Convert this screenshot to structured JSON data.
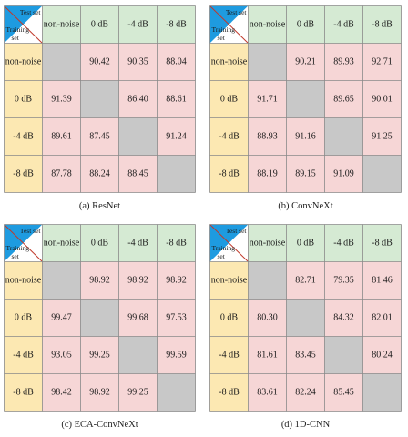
{
  "colors": {
    "header_green": "#d5ead3",
    "row_header_yellow": "#fce8b2",
    "cell_pink": "#f6d6d6",
    "diagonal_gray": "#c8c8c8",
    "corner_blue": "#1e9be0",
    "grid_line": "#8a8a8a"
  },
  "corner_labels": {
    "test": "Test set",
    "training": "Training",
    "training2": "set"
  },
  "chart_data": [
    {
      "type": "table",
      "caption": "(a) ResNet",
      "column_headers": [
        "non-noise",
        "0 dB",
        "-4 dB",
        "-8 dB"
      ],
      "row_headers": [
        "non-noise",
        "0 dB",
        "-4 dB",
        "-8 dB"
      ],
      "values": [
        [
          "",
          "90.42",
          "90.35",
          "88.04"
        ],
        [
          "91.39",
          "",
          "86.40",
          "88.61"
        ],
        [
          "89.61",
          "87.45",
          "",
          "91.24"
        ],
        [
          "87.78",
          "88.24",
          "88.45",
          ""
        ]
      ]
    },
    {
      "type": "table",
      "caption": "(b) ConvNeXt",
      "column_headers": [
        "non-noise",
        "0 dB",
        "-4 dB",
        "-8 dB"
      ],
      "row_headers": [
        "non-noise",
        "0 dB",
        "-4 dB",
        "-8 dB"
      ],
      "values": [
        [
          "",
          "90.21",
          "89.93",
          "92.71"
        ],
        [
          "91.71",
          "",
          "89.65",
          "90.01"
        ],
        [
          "88.93",
          "91.16",
          "",
          "91.25"
        ],
        [
          "88.19",
          "89.15",
          "91.09",
          ""
        ]
      ]
    },
    {
      "type": "table",
      "caption": "(c) ECA-ConvNeXt",
      "column_headers": [
        "non-noise",
        "0 dB",
        "-4 dB",
        "-8 dB"
      ],
      "row_headers": [
        "non-noise",
        "0 dB",
        "-4 dB",
        "-8 dB"
      ],
      "values": [
        [
          "",
          "98.92",
          "98.92",
          "98.92"
        ],
        [
          "99.47",
          "",
          "99.68",
          "97.53"
        ],
        [
          "93.05",
          "99.25",
          "",
          "99.59"
        ],
        [
          "98.42",
          "98.92",
          "99.25",
          ""
        ]
      ]
    },
    {
      "type": "table",
      "caption": "(d) 1D-CNN",
      "column_headers": [
        "non-noise",
        "0 dB",
        "-4 dB",
        "-8 dB"
      ],
      "row_headers": [
        "non-noise",
        "0 dB",
        "-4 dB",
        "-8 dB"
      ],
      "values": [
        [
          "",
          "82.71",
          "79.35",
          "81.46"
        ],
        [
          "80.30",
          "",
          "84.32",
          "82.01"
        ],
        [
          "81.61",
          "83.45",
          "",
          "80.24"
        ],
        [
          "83.61",
          "82.24",
          "85.45",
          ""
        ]
      ]
    }
  ]
}
